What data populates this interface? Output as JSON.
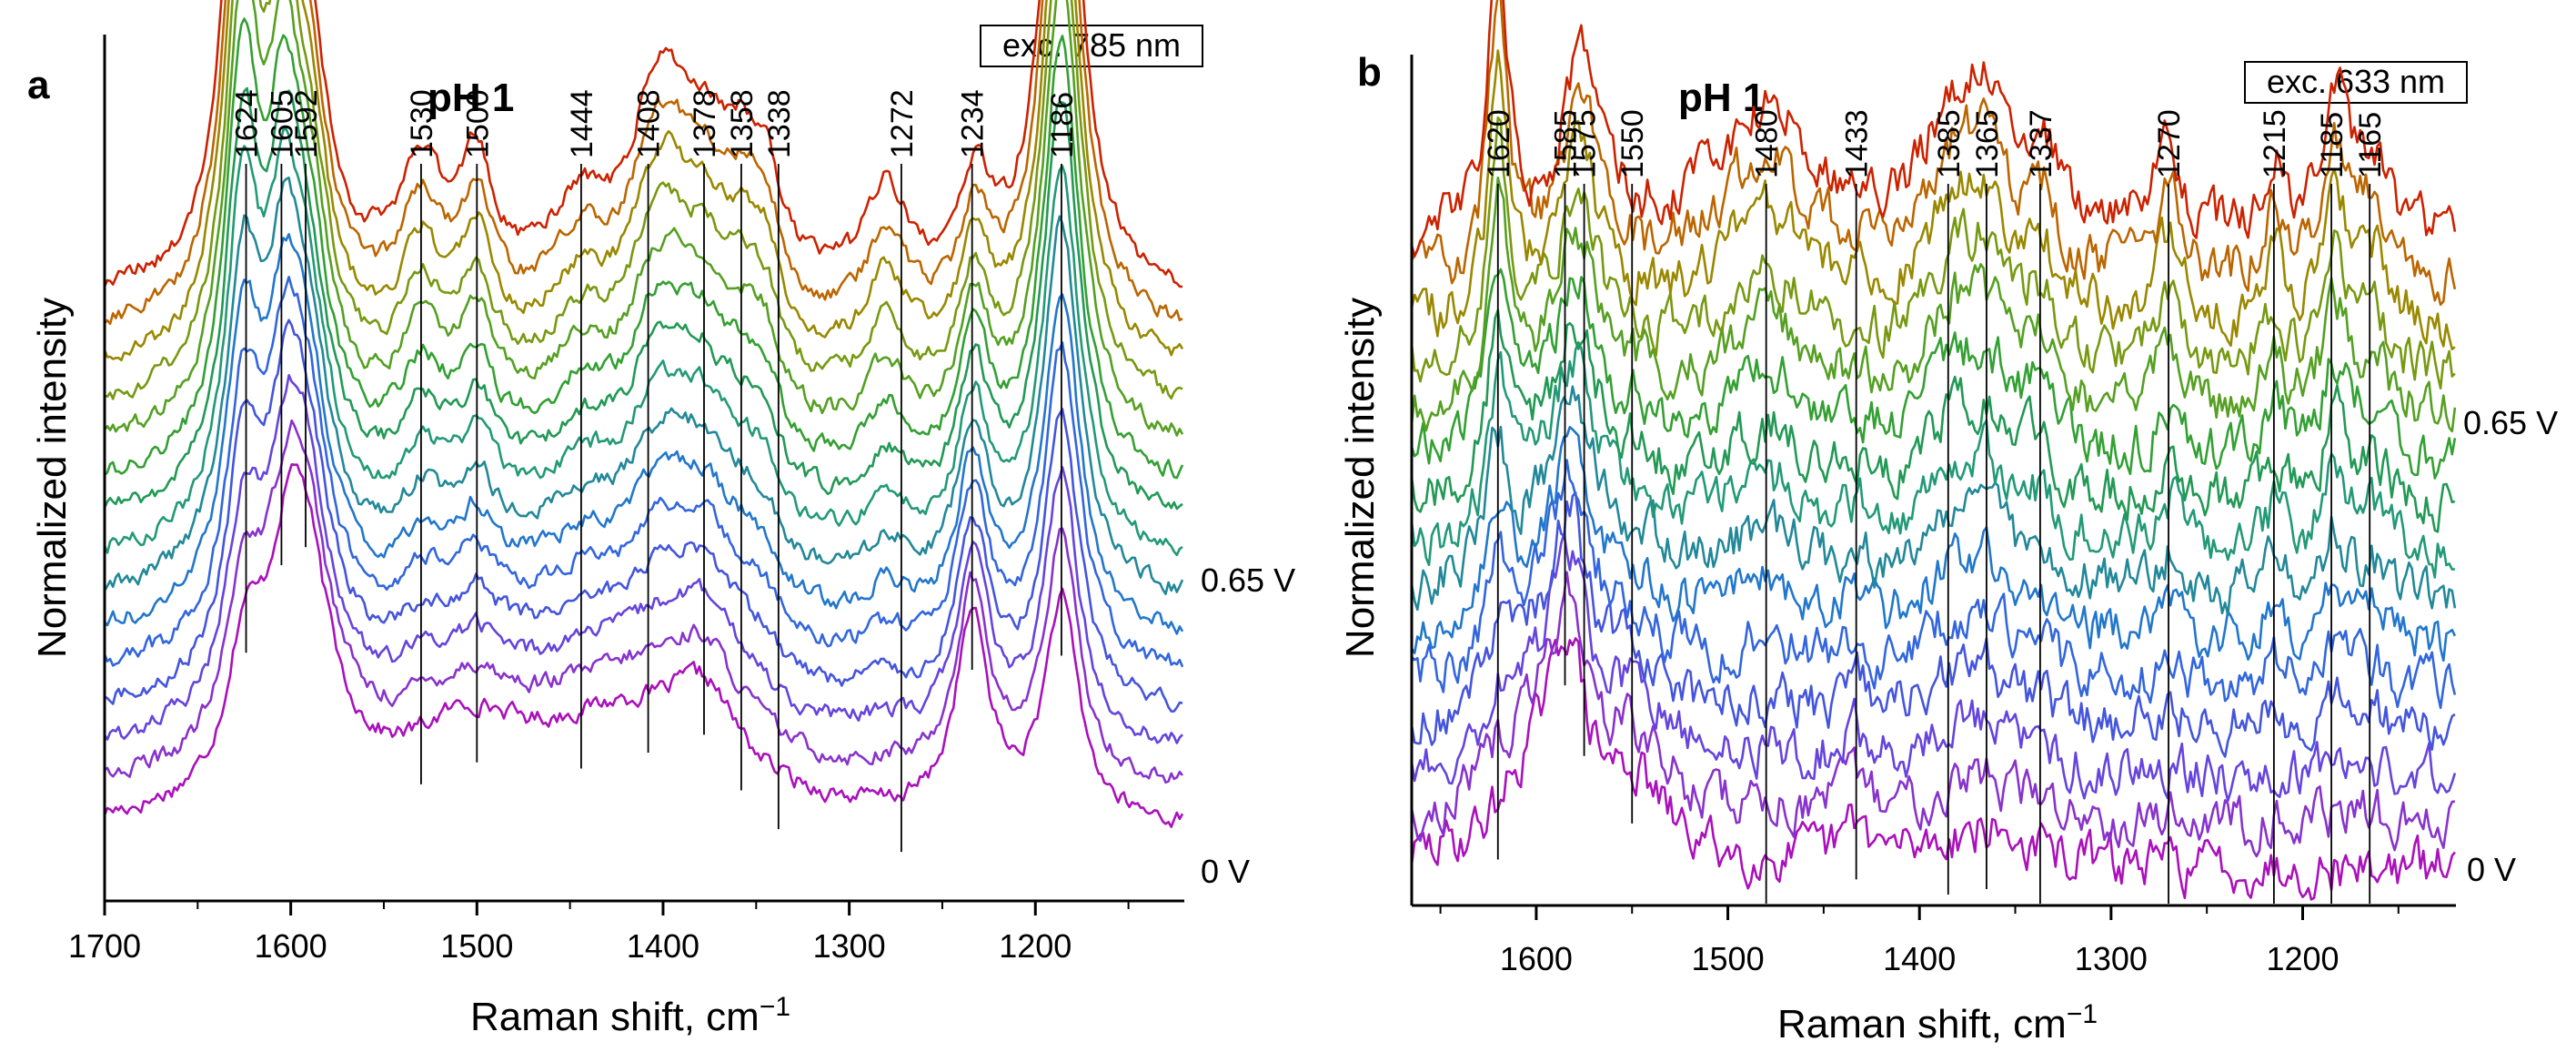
{
  "chart_data": [
    {
      "type": "line",
      "panel_label": "a",
      "title": "pH 1",
      "excitation": "exc. 785 nm",
      "xlabel": "Raman shift, cm",
      "xlabel_sup": "−1",
      "ylabel": "Normalized intensity",
      "x_ticks": [
        {
          "value": 1700,
          "label": "1700"
        },
        {
          "value": 1600,
          "label": "1600"
        },
        {
          "value": 1500,
          "label": "1500"
        },
        {
          "value": 1400,
          "label": "1400"
        },
        {
          "value": 1300,
          "label": "1300"
        },
        {
          "value": 1200,
          "label": "1200"
        }
      ],
      "xlim": [
        1700,
        1120
      ],
      "series_count": 15,
      "series_colors": [
        "#aa11bb",
        "#8833cc",
        "#6644dd",
        "#4455dd",
        "#3366dd",
        "#2277cc",
        "#228899",
        "#229977",
        "#229955",
        "#33a033",
        "#55a022",
        "#779911",
        "#998800",
        "#bb6600",
        "#cc2200"
      ],
      "series_labels": {
        "first": "0 V",
        "last": "0.65 V"
      },
      "noise": 0.4,
      "peaks_low": [
        {
          "x": 1625,
          "h": 6,
          "w": 11
        },
        {
          "x": 1598,
          "h": 14,
          "w": 18
        },
        {
          "x": 1590,
          "h": 3,
          "w": 20
        },
        {
          "x": 1505,
          "h": 4,
          "w": 40
        },
        {
          "x": 1420,
          "h": 5,
          "w": 60
        },
        {
          "x": 1378,
          "h": 4,
          "w": 22
        },
        {
          "x": 1234,
          "h": 10,
          "w": 11
        },
        {
          "x": 1186,
          "h": 11,
          "w": 11
        }
      ],
      "peaks_high": [
        {
          "x": 1626,
          "h": 26,
          "w": 11
        },
        {
          "x": 1604,
          "h": 17,
          "w": 10
        },
        {
          "x": 1590,
          "h": 9,
          "w": 12
        },
        {
          "x": 1530,
          "h": 6,
          "w": 14
        },
        {
          "x": 1500,
          "h": 6,
          "w": 10
        },
        {
          "x": 1444,
          "h": 4,
          "w": 20
        },
        {
          "x": 1408,
          "h": 5,
          "w": 14
        },
        {
          "x": 1396,
          "h": 6,
          "w": 14
        },
        {
          "x": 1378,
          "h": 5,
          "w": 14
        },
        {
          "x": 1358,
          "h": 5,
          "w": 14
        },
        {
          "x": 1345,
          "h": 4,
          "w": 10
        },
        {
          "x": 1280,
          "h": 5,
          "w": 13
        },
        {
          "x": 1232,
          "h": 5,
          "w": 10
        },
        {
          "x": 1186,
          "h": 29,
          "w": 12
        }
      ],
      "base_low": 3.5,
      "base_high": 6,
      "step": 1.75,
      "ylim": [
        0,
        44
      ],
      "peak_markers": [
        {
          "x": 1624,
          "label": "1624"
        },
        {
          "x": 1605,
          "label": "1605"
        },
        {
          "x": 1592,
          "label": "1592"
        },
        {
          "x": 1530,
          "label": "1530"
        },
        {
          "x": 1500,
          "label": "1500"
        },
        {
          "x": 1444,
          "label": "1444"
        },
        {
          "x": 1408,
          "label": "1408"
        },
        {
          "x": 1378,
          "label": "1378"
        },
        {
          "x": 1358,
          "label": "1358"
        },
        {
          "x": 1338,
          "label": "1338"
        },
        {
          "x": 1272,
          "label": "1272"
        },
        {
          "x": 1234,
          "label": "1234"
        },
        {
          "x": 1186,
          "label": "1186"
        }
      ]
    },
    {
      "type": "line",
      "panel_label": "b",
      "title": "pH 1",
      "excitation": "exc. 633 nm",
      "xlabel": "Raman shift, cm",
      "xlabel_sup": "−1",
      "ylabel": "Normalized intensity",
      "x_ticks": [
        {
          "value": 1600,
          "label": "1600"
        },
        {
          "value": 1500,
          "label": "1500"
        },
        {
          "value": 1400,
          "label": "1400"
        },
        {
          "value": 1300,
          "label": "1300"
        },
        {
          "value": 1200,
          "label": "1200"
        }
      ],
      "xlim": [
        1665,
        1120
      ],
      "series_count": 15,
      "series_colors": [
        "#aa11bb",
        "#8833cc",
        "#6644dd",
        "#4455dd",
        "#3366dd",
        "#2277cc",
        "#228899",
        "#229977",
        "#229955",
        "#33a033",
        "#55a022",
        "#779911",
        "#998800",
        "#bb6600",
        "#cc2200"
      ],
      "series_labels": {
        "first": "0 V",
        "last": "0.65 V"
      },
      "noise": 1.2,
      "peaks_low": [
        {
          "x": 1600,
          "h": 5,
          "w": 22
        },
        {
          "x": 1583,
          "h": 9,
          "w": 10
        },
        {
          "x": 1550,
          "h": 4,
          "w": 20
        },
        {
          "x": 1433,
          "h": 2,
          "w": 8
        },
        {
          "x": 1370,
          "h": 2,
          "w": 30
        }
      ],
      "peaks_high": [
        {
          "x": 1620,
          "h": 15,
          "w": 6
        },
        {
          "x": 1577,
          "h": 9,
          "w": 12
        },
        {
          "x": 1480,
          "h": 7,
          "w": 30
        },
        {
          "x": 1385,
          "h": 5,
          "w": 16
        },
        {
          "x": 1365,
          "h": 6,
          "w": 16
        },
        {
          "x": 1337,
          "h": 4,
          "w": 10
        },
        {
          "x": 1270,
          "h": 5,
          "w": 8
        },
        {
          "x": 1215,
          "h": 4,
          "w": 7
        },
        {
          "x": 1183,
          "h": 8,
          "w": 8
        },
        {
          "x": 1163,
          "h": 4,
          "w": 9
        }
      ],
      "base_low": 2,
      "base_high": 10,
      "step": 1.85,
      "ylim": [
        0,
        46
      ],
      "peak_markers": [
        {
          "x": 1620,
          "label": "1620"
        },
        {
          "x": 1585,
          "label": "1585"
        },
        {
          "x": 1575,
          "label": "1575"
        },
        {
          "x": 1550,
          "label": "1550"
        },
        {
          "x": 1480,
          "label": "1480"
        },
        {
          "x": 1433,
          "label": "1433"
        },
        {
          "x": 1385,
          "label": "1385"
        },
        {
          "x": 1365,
          "label": "1365"
        },
        {
          "x": 1337,
          "label": "1337"
        },
        {
          "x": 1270,
          "label": "1270"
        },
        {
          "x": 1215,
          "label": "1215"
        },
        {
          "x": 1185,
          "label": "1185"
        },
        {
          "x": 1165,
          "label": "1165"
        }
      ]
    }
  ]
}
